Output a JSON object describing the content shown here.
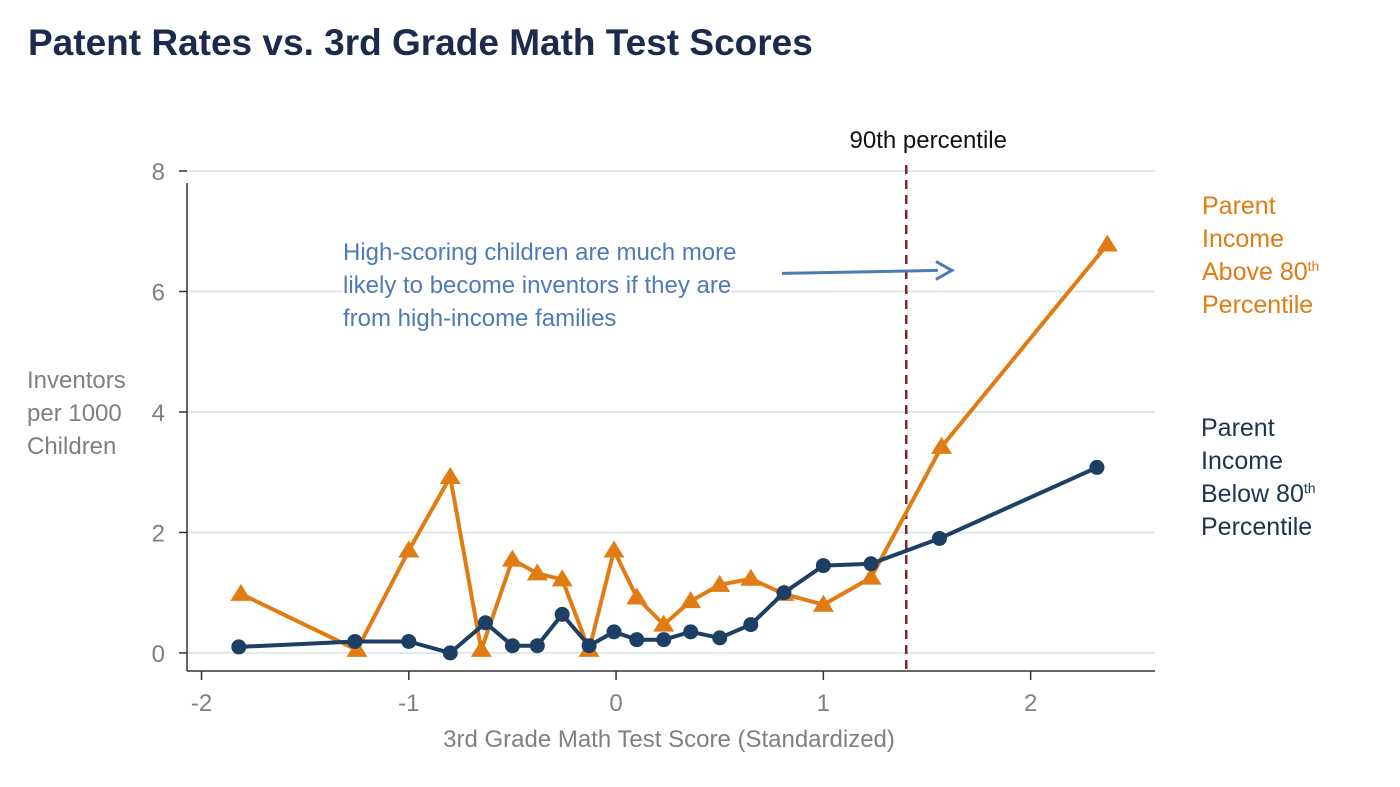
{
  "header": {
    "title": "Patent Rates vs. 3rd Grade Math Test Scores"
  },
  "colors": {
    "above": "#e07c13",
    "below": "#1c3f63",
    "reference_line": "#7a2a2a",
    "annotation": "#4e7ab8",
    "grid": "#dfe9ea",
    "axis_text": "#7f7f7f"
  },
  "chart_data": {
    "type": "line",
    "title": "Patent Rates vs. 3rd Grade Math Test Scores",
    "xlabel": "3rd Grade Math Test Score (Standardized)",
    "ylabel_lines": [
      "Inventors",
      "per 1000",
      "Children"
    ],
    "xlim": [
      -2.07,
      2.6
    ],
    "ylim": [
      -0.3,
      8.1
    ],
    "xticks": [
      -2,
      -1,
      0,
      1,
      2
    ],
    "xtick_labels": [
      "-2",
      "-1",
      "0",
      "1",
      "2"
    ],
    "yticks": [
      0,
      2,
      4,
      6,
      8
    ],
    "ytick_labels": [
      "0",
      "2",
      "4",
      "6",
      "8"
    ],
    "grid": "horizontal",
    "series": [
      {
        "key": "above",
        "marker": "triangle",
        "label_lines": [
          {
            "text": "Parent",
            "sup": ""
          },
          {
            "text": "Income",
            "sup": ""
          },
          {
            "text": "Above 80",
            "sup": "th"
          },
          {
            "text": "Percentile",
            "sup": ""
          }
        ],
        "x": [
          -1.81,
          -1.25,
          -1.0,
          -0.8,
          -0.65,
          -0.5,
          -0.38,
          -0.26,
          -0.13,
          -0.01,
          0.1,
          0.23,
          0.36,
          0.5,
          0.65,
          0.81,
          1.0,
          1.23,
          1.57,
          2.37
        ],
        "y": [
          0.98,
          0.05,
          1.7,
          2.92,
          0.05,
          1.55,
          1.32,
          1.22,
          0.05,
          1.7,
          0.92,
          0.47,
          0.86,
          1.13,
          1.23,
          0.98,
          0.8,
          1.25,
          3.42,
          6.78
        ]
      },
      {
        "key": "below",
        "marker": "circle",
        "label_lines": [
          {
            "text": "Parent",
            "sup": ""
          },
          {
            "text": "Income",
            "sup": ""
          },
          {
            "text": "Below 80",
            "sup": "th"
          },
          {
            "text": "Percentile",
            "sup": ""
          }
        ],
        "x": [
          -1.82,
          -1.26,
          -1.0,
          -0.8,
          -0.63,
          -0.5,
          -0.38,
          -0.26,
          -0.13,
          -0.01,
          0.1,
          0.23,
          0.36,
          0.5,
          0.65,
          0.81,
          1.0,
          1.23,
          1.56,
          2.32
        ],
        "y": [
          0.1,
          0.19,
          0.19,
          0.0,
          0.5,
          0.12,
          0.12,
          0.64,
          0.12,
          0.35,
          0.22,
          0.22,
          0.35,
          0.25,
          0.47,
          1.0,
          1.45,
          1.48,
          1.9,
          3.08
        ]
      }
    ],
    "reference_line": {
      "x": 1.4,
      "label": "90th percentile",
      "style": "dashed"
    },
    "annotation": {
      "lines": [
        "High-scoring children are much more",
        "likely to become inventors if they are",
        "from high-income families"
      ],
      "arrow_from": [
        0.8,
        6.3
      ],
      "arrow_to": [
        1.62,
        6.35
      ]
    }
  }
}
